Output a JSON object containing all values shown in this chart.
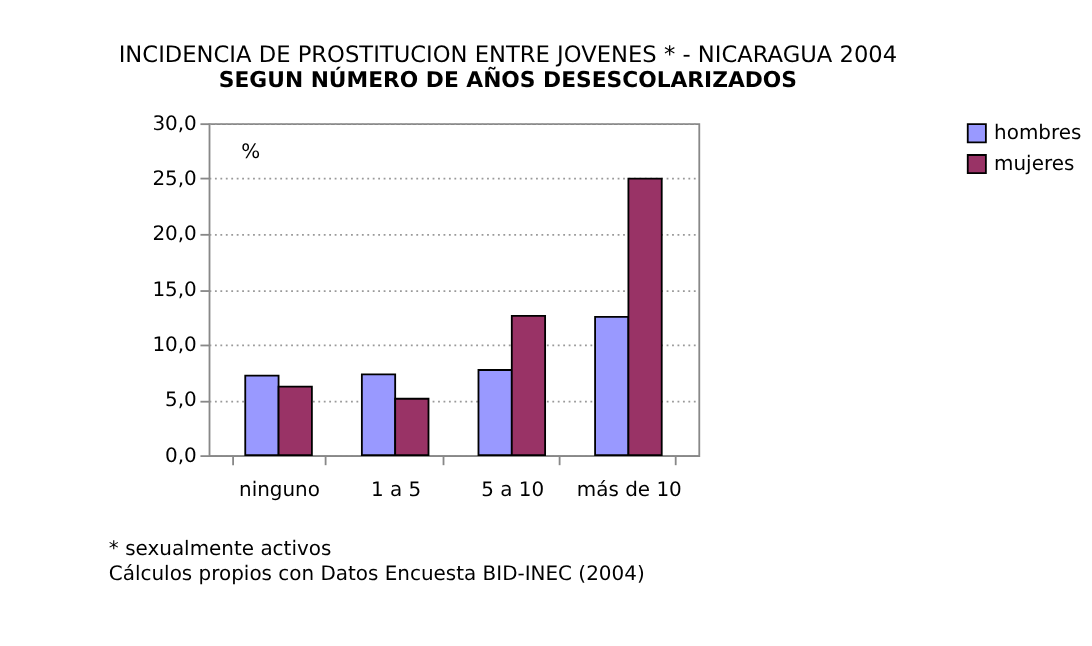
{
  "chart_data": {
    "type": "bar",
    "title": "INCIDENCIA DE PROSTITUCION ENTRE JOVENES * - NICARAGUA 2004",
    "subtitle": "SEGUN NÚMERO DE AÑOS DESESCOLARIZADOS",
    "ylabel": "%",
    "categories": [
      "ninguno",
      "1 a 5",
      "5 a 10",
      "más de 10"
    ],
    "series": [
      {
        "name": "hombres",
        "color": "#9999ff",
        "values": [
          7.2,
          7.3,
          7.7,
          12.5
        ]
      },
      {
        "name": "mujeres",
        "color": "#993366",
        "values": [
          6.2,
          5.1,
          12.6,
          25.0
        ]
      }
    ],
    "ylim": [
      0,
      30
    ],
    "yticks": [
      {
        "value": 0,
        "label": "0,0"
      },
      {
        "value": 5,
        "label": "5,0"
      },
      {
        "value": 10,
        "label": "10,0"
      },
      {
        "value": 15,
        "label": "15,0"
      },
      {
        "value": 20,
        "label": "20,0"
      },
      {
        "value": 25,
        "label": "25,0"
      },
      {
        "value": 30,
        "label": "30,0"
      }
    ],
    "grid": "y",
    "legend": "right",
    "annotations": [
      "* sexualmente activos",
      "Cálculos propios con Datos Encuesta BID-INEC (2004)"
    ]
  }
}
